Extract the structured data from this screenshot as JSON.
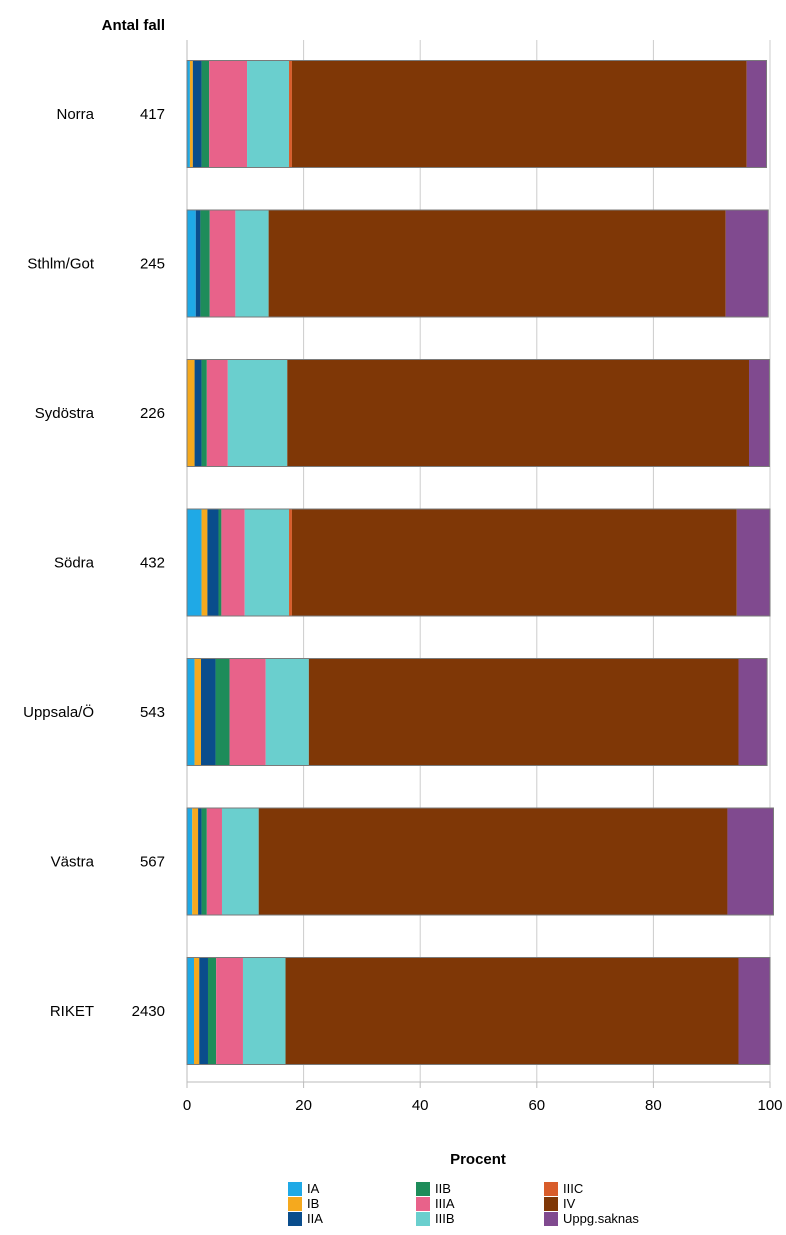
{
  "chart_data": {
    "type": "bar",
    "orientation": "horizontal",
    "stacked": true,
    "count_header": "Antal fall",
    "xlabel": "Procent",
    "xlim": [
      0,
      100
    ],
    "xticks": [
      0,
      20,
      40,
      60,
      80,
      100
    ],
    "grid": true,
    "legend_position": "bottom",
    "categories": [
      "Norra",
      "Sthlm/Got",
      "Sydöstra",
      "Södra",
      "Uppsala/Ö",
      "Västra",
      "RIKET"
    ],
    "counts": [
      "417",
      "245",
      "226",
      "432",
      "543",
      "567",
      "2430"
    ],
    "series": [
      {
        "name": "IA",
        "color": "#1fa9e6",
        "values": [
          0.5,
          1.5,
          0.0,
          2.5,
          1.3,
          0.9,
          1.2
        ]
      },
      {
        "name": "IB",
        "color": "#f5a91e",
        "values": [
          0.5,
          0.0,
          1.3,
          1.0,
          1.1,
          1.0,
          0.9
        ]
      },
      {
        "name": "IIA",
        "color": "#0a4d8c",
        "values": [
          1.5,
          0.8,
          1.2,
          1.9,
          2.5,
          0.6,
          1.5
        ]
      },
      {
        "name": "IIB",
        "color": "#1e8c5a",
        "values": [
          1.3,
          1.6,
          0.9,
          0.5,
          2.4,
          0.9,
          1.4
        ]
      },
      {
        "name": "IIIA",
        "color": "#e8628a",
        "values": [
          6.5,
          4.4,
          3.6,
          4.0,
          6.2,
          2.6,
          4.6
        ]
      },
      {
        "name": "IIIB",
        "color": "#6acfce",
        "values": [
          7.2,
          5.7,
          10.2,
          7.6,
          7.4,
          6.3,
          7.3
        ]
      },
      {
        "name": "IIIC",
        "color": "#d85c2a",
        "values": [
          0.5,
          0.0,
          0.0,
          0.5,
          0.0,
          0.0,
          0.0
        ]
      },
      {
        "name": "IV",
        "color": "#7f3706",
        "values": [
          78.0,
          78.4,
          79.2,
          76.3,
          73.7,
          80.4,
          77.7
        ]
      },
      {
        "name": "Uppg.saknas",
        "color": "#804a8f",
        "values": [
          3.4,
          7.3,
          3.5,
          5.7,
          4.9,
          7.9,
          5.4
        ]
      }
    ]
  }
}
